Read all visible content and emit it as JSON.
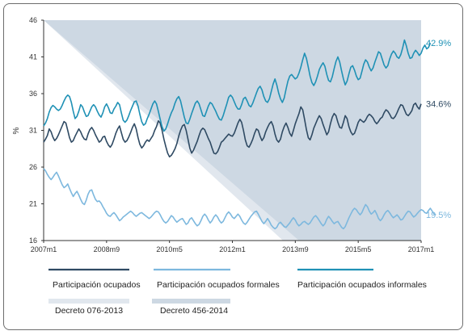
{
  "chart_data": {
    "type": "line",
    "ylabel": "%",
    "ylim": [
      16,
      46
    ],
    "y_ticks": [
      16,
      21,
      26,
      31,
      36,
      41,
      46
    ],
    "x_ticks": [
      "2007m1",
      "2008m9",
      "2010m5",
      "2012m1",
      "2013m9",
      "2015m5",
      "2017m1"
    ],
    "x_range": [
      "2007m1",
      "2017m1"
    ],
    "grid": false,
    "legend_position": "bottom",
    "series": [
      {
        "name": "Participación ocupados",
        "color": "#2f4a63",
        "end_label": "34.6%",
        "values": [
          29.4,
          29.8,
          30.3,
          31.2,
          30.8,
          30.1,
          29.6,
          29.9,
          30.4,
          31.0,
          31.6,
          32.2,
          32.0,
          31.0,
          30.0,
          29.4,
          29.6,
          30.2,
          30.7,
          31.2,
          30.8,
          30.2,
          29.8,
          29.7,
          30.5,
          31.1,
          31.4,
          31.0,
          30.4,
          29.9,
          29.4,
          29.6,
          30.1,
          30.2,
          29.5,
          29.0,
          28.7,
          29.1,
          29.8,
          30.6,
          31.2,
          31.6,
          30.7,
          29.8,
          29.4,
          29.6,
          30.1,
          30.7,
          31.4,
          31.9,
          31.2,
          30.0,
          29.1,
          28.6,
          28.9,
          29.4,
          29.7,
          29.5,
          29.9,
          30.3,
          31.0,
          31.5,
          32.3,
          32.0,
          31.0,
          29.8,
          28.8,
          27.9,
          27.4,
          27.6,
          28.0,
          28.5,
          29.2,
          30.2,
          31.0,
          31.6,
          31.8,
          31.0,
          29.8,
          28.6,
          27.9,
          28.3,
          28.9,
          29.5,
          30.3,
          31.0,
          31.3,
          31.1,
          30.5,
          29.9,
          29.4,
          28.6,
          27.9,
          27.8,
          28.1,
          28.7,
          29.4,
          29.6,
          29.9,
          30.2,
          30.5,
          30.3,
          30.2,
          30.6,
          31.3,
          32.0,
          32.5,
          32.1,
          31.0,
          29.7,
          28.9,
          28.7,
          29.2,
          29.8,
          30.6,
          31.2,
          31.0,
          30.2,
          29.6,
          30.0,
          30.8,
          31.4,
          31.9,
          32.2,
          31.6,
          30.5,
          29.7,
          29.4,
          29.8,
          30.8,
          31.5,
          32.0,
          31.4,
          30.6,
          30.2,
          31.0,
          31.9,
          32.6,
          33.3,
          34.2,
          33.8,
          32.5,
          31.1,
          30.0,
          29.7,
          30.4,
          31.3,
          31.9,
          32.5,
          33.0,
          32.6,
          31.8,
          31.1,
          30.4,
          30.8,
          31.9,
          32.8,
          33.3,
          33.0,
          32.1,
          31.4,
          31.3,
          32.1,
          33.0,
          32.6,
          31.5,
          30.8,
          30.4,
          30.6,
          31.3,
          32.1,
          32.5,
          32.3,
          32.1,
          32.4,
          32.9,
          33.2,
          33.0,
          32.7,
          32.2,
          31.9,
          32.2,
          32.6,
          32.8,
          33.4,
          33.8,
          33.6,
          33.2,
          32.7,
          32.6,
          32.9,
          33.4,
          34.0,
          34.5,
          34.4,
          33.8,
          33.2,
          33.0,
          33.3,
          33.7,
          34.5,
          34.7,
          34.2,
          33.9,
          34.6
        ]
      },
      {
        "name": "Participación ocupados formales",
        "color": "#7db8de",
        "end_label": "19.5%",
        "values": [
          25.8,
          25.5,
          25.0,
          24.6,
          24.3,
          24.6,
          25.0,
          25.3,
          24.8,
          24.2,
          23.6,
          23.2,
          23.4,
          23.7,
          23.1,
          22.5,
          22.0,
          22.4,
          22.7,
          22.2,
          21.6,
          21.1,
          20.9,
          21.5,
          22.3,
          22.8,
          22.9,
          22.2,
          21.6,
          21.3,
          21.4,
          21.1,
          20.6,
          20.2,
          19.7,
          19.4,
          19.3,
          19.6,
          19.8,
          19.5,
          19.1,
          18.7,
          18.9,
          19.2,
          19.4,
          19.6,
          19.8,
          20.0,
          19.8,
          19.5,
          19.3,
          19.5,
          19.7,
          19.8,
          19.6,
          19.4,
          19.2,
          19.0,
          19.2,
          19.5,
          19.8,
          20.0,
          19.9,
          19.5,
          19.0,
          18.6,
          18.4,
          18.6,
          19.0,
          19.4,
          19.2,
          18.8,
          18.5,
          18.7,
          18.9,
          19.0,
          18.6,
          18.2,
          18.4,
          18.9,
          19.1,
          18.7,
          18.3,
          18.0,
          18.2,
          18.7,
          19.3,
          19.6,
          19.3,
          18.8,
          18.4,
          18.7,
          19.2,
          19.5,
          19.2,
          18.7,
          18.4,
          18.6,
          19.1,
          19.6,
          19.9,
          19.6,
          19.2,
          19.0,
          19.3,
          19.6,
          19.3,
          18.8,
          18.4,
          18.2,
          18.5,
          18.9,
          19.3,
          19.6,
          19.9,
          20.0,
          19.6,
          19.1,
          18.6,
          18.3,
          18.6,
          19.0,
          18.6,
          18.1,
          17.8,
          17.6,
          17.8,
          18.3,
          18.5,
          18.2,
          17.9,
          17.8,
          18.1,
          18.4,
          18.8,
          19.1,
          18.8,
          18.3,
          18.0,
          18.2,
          18.5,
          18.6,
          18.4,
          18.2,
          18.4,
          18.8,
          19.2,
          19.4,
          19.1,
          18.7,
          18.3,
          18.0,
          18.3,
          18.9,
          19.3,
          19.0,
          18.6,
          18.3,
          18.5,
          18.6,
          18.2,
          17.8,
          17.6,
          17.9,
          18.5,
          19.1,
          19.6,
          20.1,
          20.4,
          20.2,
          19.8,
          19.5,
          19.8,
          20.4,
          20.9,
          20.6,
          20.0,
          19.6,
          19.8,
          20.1,
          19.6,
          19.0,
          18.7,
          19.0,
          19.5,
          19.9,
          20.1,
          19.8,
          19.4,
          19.1,
          19.3,
          19.5,
          19.2,
          18.8,
          18.9,
          19.3,
          19.7,
          20.0,
          19.9,
          19.5,
          19.2,
          19.4,
          19.7,
          20.0,
          20.2,
          20.1,
          19.8,
          19.7,
          20.1,
          20.4,
          20.0,
          19.6,
          19.5
        ]
      },
      {
        "name": "Participación ocupados informales",
        "color": "#1f91b5",
        "end_label": "42.9%",
        "values": [
          31.6,
          32.0,
          32.6,
          33.5,
          34.1,
          34.4,
          34.2,
          33.9,
          33.7,
          33.9,
          34.4,
          35.0,
          35.5,
          35.8,
          35.6,
          34.8,
          33.6,
          32.6,
          32.9,
          33.6,
          34.5,
          34.2,
          33.5,
          32.9,
          33.0,
          33.6,
          34.2,
          34.5,
          34.2,
          33.6,
          33.1,
          32.8,
          33.4,
          34.2,
          34.6,
          34.1,
          33.4,
          33.3,
          33.9,
          34.3,
          34.8,
          34.5,
          33.4,
          32.4,
          32.1,
          32.4,
          33.0,
          33.7,
          34.3,
          34.9,
          35.0,
          34.3,
          33.2,
          32.2,
          31.7,
          31.9,
          32.6,
          33.2,
          33.9,
          34.6,
          35.0,
          34.6,
          33.6,
          32.5,
          31.5,
          30.9,
          31.2,
          31.9,
          32.7,
          33.4,
          33.9,
          34.7,
          35.3,
          35.6,
          35.0,
          33.9,
          32.8,
          32.0,
          31.9,
          32.5,
          33.3,
          34.0,
          34.7,
          35.0,
          34.6,
          33.8,
          33.0,
          32.9,
          33.6,
          34.3,
          34.8,
          34.6,
          34.1,
          33.6,
          33.0,
          32.5,
          32.4,
          33.0,
          33.8,
          34.6,
          35.5,
          35.8,
          35.5,
          34.9,
          34.3,
          33.9,
          33.9,
          34.5,
          35.3,
          35.5,
          35.0,
          34.4,
          34.2,
          34.7,
          35.4,
          36.1,
          36.7,
          37.0,
          36.5,
          35.6,
          35.0,
          34.8,
          35.3,
          36.3,
          37.3,
          38.0,
          37.2,
          36.1,
          35.3,
          34.8,
          35.4,
          36.6,
          37.7,
          38.4,
          38.6,
          38.3,
          38.0,
          38.2,
          38.8,
          39.6,
          40.6,
          41.5,
          40.8,
          39.6,
          38.4,
          37.5,
          37.1,
          37.6,
          38.4,
          39.3,
          39.8,
          40.2,
          39.7,
          38.6,
          37.8,
          37.6,
          38.3,
          39.4,
          40.4,
          41.0,
          40.3,
          39.1,
          38.0,
          37.2,
          37.7,
          38.7,
          39.6,
          39.8,
          39.2,
          38.4,
          37.9,
          38.1,
          39.0,
          40.0,
          40.6,
          40.3,
          39.6,
          39.1,
          39.5,
          40.3,
          41.0,
          41.7,
          41.5,
          40.7,
          39.9,
          39.5,
          39.8,
          40.7,
          41.4,
          41.8,
          41.5,
          41.0,
          40.8,
          41.3,
          42.2,
          43.3,
          42.5,
          41.5,
          40.8,
          40.9,
          41.5,
          41.9,
          41.6,
          41.2,
          41.5,
          42.2,
          42.6,
          42.1,
          42.3,
          42.9
        ]
      }
    ],
    "shaded_regions": [
      {
        "name": "Decreto 076-2013",
        "color": "#e1e7ee"
      },
      {
        "name": "Decreto 456-2014",
        "color": "#cdd8e3"
      }
    ]
  }
}
